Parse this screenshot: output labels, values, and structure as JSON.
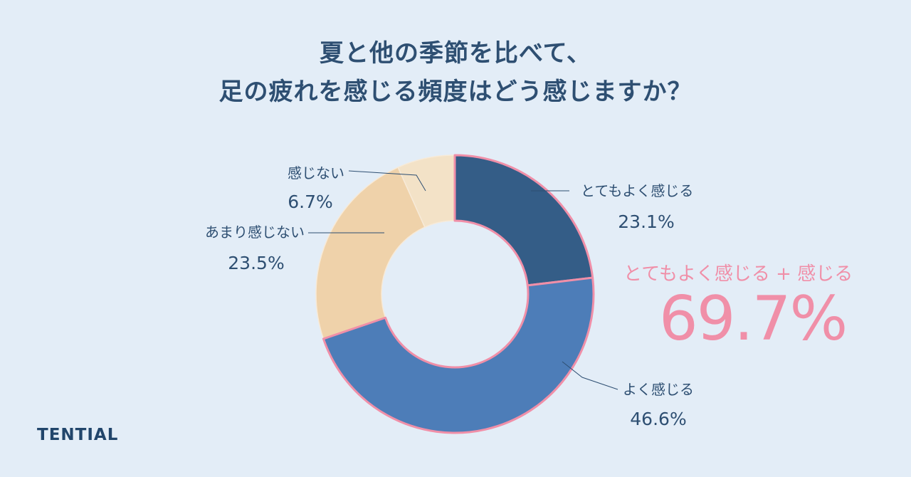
{
  "title": {
    "line1": "夏と他の季節を比べて、",
    "line2": "足の疲れを感じる頻度はどう感じますか？"
  },
  "chart_data": {
    "type": "pie",
    "subtype": "donut",
    "title": "夏と他の季節を比べて、足の疲れを感じる頻度はどう感じますか？",
    "slices": [
      {
        "label": "とてもよく感じる",
        "value": 23.1,
        "value_label": "23.1%",
        "color": "#345d87"
      },
      {
        "label": "よく感じる",
        "value": 46.6,
        "value_label": "46.6%",
        "color": "#4d7db8"
      },
      {
        "label": "あまり感じない",
        "value": 23.5,
        "value_label": "23.5%",
        "color": "#efd2aa"
      },
      {
        "label": "感じない",
        "value": 6.7,
        "value_label": "6.7%",
        "color": "#f3e2c7"
      }
    ],
    "highlight": {
      "label": "とてもよく感じる + 感じる",
      "value": "69.7%",
      "color": "#f08fa8"
    },
    "colors": {
      "background": "#e3edf7",
      "text": "#2e4f72",
      "accent_outline": "#f08fa8",
      "leader_line": "#2e4f72"
    }
  },
  "brand": {
    "name": "TENTIAL"
  }
}
